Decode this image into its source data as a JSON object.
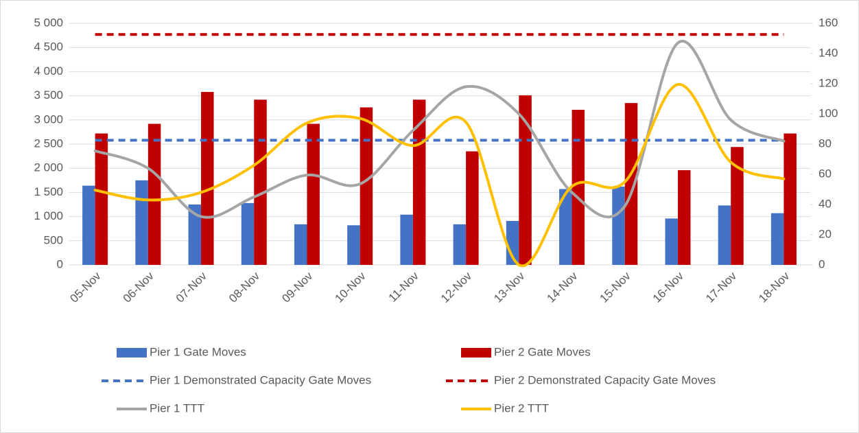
{
  "chart_data": {
    "type": "combo",
    "categories": [
      "05-Nov",
      "06-Nov",
      "07-Nov",
      "08-Nov",
      "09-Nov",
      "10-Nov",
      "11-Nov",
      "12-Nov",
      "13-Nov",
      "14-Nov",
      "15-Nov",
      "16-Nov",
      "17-Nov",
      "18-Nov"
    ],
    "ylim": [
      0,
      5000
    ],
    "yticks": [
      0,
      500,
      {
        "value": 1000,
        "label": "1 000"
      },
      {
        "value": 1500,
        "label": "1 500"
      },
      {
        "value": 2000,
        "label": "2 000"
      },
      {
        "value": 2500,
        "label": "2 500"
      },
      {
        "value": 3000,
        "label": "3 000"
      },
      {
        "value": 3500,
        "label": "3 500"
      },
      {
        "value": 4000,
        "label": "4 000"
      },
      {
        "value": 4500,
        "label": "4 500"
      },
      {
        "value": 5000,
        "label": "5 000"
      }
    ],
    "y2lim": [
      0,
      160
    ],
    "y2ticks": [
      0,
      20,
      40,
      60,
      80,
      100,
      120,
      140,
      160
    ],
    "grid": true,
    "legend": "bottom",
    "series": [
      {
        "name": "Pier 1 Gate Moves",
        "type": "bar",
        "color": "#4472c4",
        "values": [
          1640,
          1750,
          1250,
          1280,
          840,
          820,
          1040,
          840,
          910,
          1570,
          1620,
          960,
          1230,
          1070
        ]
      },
      {
        "name": "Pier 2 Gate Moves",
        "type": "bar",
        "color": "#c00000",
        "values": [
          2720,
          2920,
          3580,
          3420,
          2920,
          3260,
          3420,
          2350,
          3510,
          3210,
          3350,
          1960,
          2440,
          2720
        ]
      },
      {
        "name": "Pier 1 Demonstrated Capacity Gate Moves",
        "type": "line",
        "dashed": true,
        "color": "#4472c4",
        "values": [
          2580,
          2580,
          2580,
          2580,
          2580,
          2580,
          2580,
          2580,
          2580,
          2580,
          2580,
          2580,
          2580,
          2580
        ]
      },
      {
        "name": "Pier 2 Demonstrated Capacity Gate Moves",
        "type": "line",
        "dashed": true,
        "color": "#c00000",
        "values": [
          4770,
          4770,
          4770,
          4770,
          4770,
          4770,
          4770,
          4770,
          4770,
          4770,
          4770,
          4770,
          4770,
          4770
        ]
      },
      {
        "name": "Pier 1 TTT",
        "type": "line",
        "smooth": true,
        "axis": "y2",
        "color": "#a5a5a5",
        "values": [
          75.5,
          64,
          32,
          45,
          59.5,
          53.6,
          89,
          118,
          100,
          48,
          39,
          147,
          96,
          82
        ]
      },
      {
        "name": "Pier 2 TTT",
        "type": "line",
        "smooth": true,
        "axis": "y2",
        "color": "#ffc000",
        "values": [
          49.5,
          43,
          48,
          66,
          94,
          97,
          79,
          94.5,
          0,
          52,
          55,
          119.5,
          68,
          57
        ]
      }
    ]
  }
}
